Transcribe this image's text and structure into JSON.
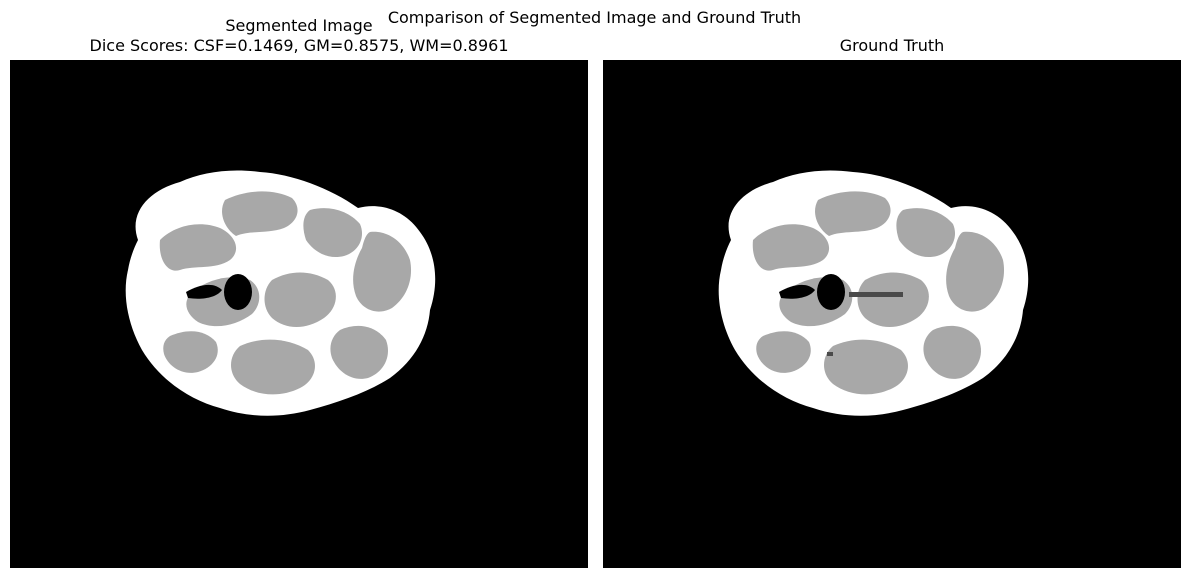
{
  "figure": {
    "suptitle": "Comparison of Segmented Image and Ground Truth"
  },
  "panels": [
    {
      "title_line1": "Segmented Image",
      "title_line2": "Dice Scores: CSF=0.1469, GM=0.8575, WM=0.8961",
      "image": "segmented-brain-slice"
    },
    {
      "title_line1": "Ground Truth",
      "image": "ground-truth-brain-slice"
    }
  ],
  "colors": {
    "background": "#000000",
    "white_matter": "#ffffff",
    "gray_matter": "#a8a8a8",
    "csf": "#4a4a4a"
  }
}
